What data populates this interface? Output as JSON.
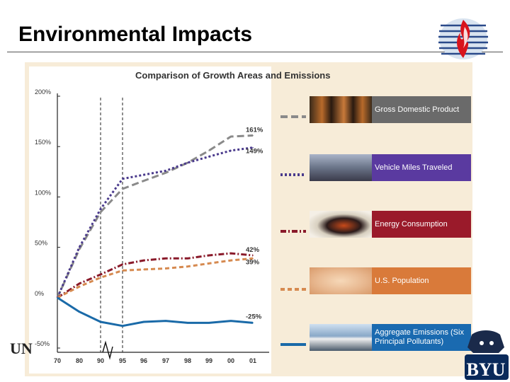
{
  "slide": {
    "title": "Environmental Impacts"
  },
  "footer": {
    "university_text": "UN"
  },
  "colors": {
    "title_rule": "#555555",
    "panel_bg": "#f7ecd8"
  },
  "chart_data": {
    "type": "line",
    "title": "Comparison of Growth Areas and Emissions",
    "categories": [
      "70",
      "80",
      "90",
      "95",
      "96",
      "97",
      "98",
      "99",
      "00",
      "01"
    ],
    "y_tick_labels": [
      "200%",
      "150%",
      "100%",
      "50%",
      "0%",
      "-50%"
    ],
    "y_ticks": [
      200,
      150,
      100,
      50,
      0,
      -50
    ],
    "ylim": [
      -50,
      200
    ],
    "reference_lines": [
      "90",
      "95"
    ],
    "series": [
      {
        "name": "Gross Domestic Product",
        "color": "#8a8a8a",
        "dash": "long",
        "end_label": "161%",
        "tile_color": "#6a6a6a",
        "values": [
          0,
          48,
          85,
          108,
          116,
          124,
          134,
          146,
          160,
          161
        ]
      },
      {
        "name": "Vehicle Miles Traveled",
        "color": "#4a3a8c",
        "dash": "dot",
        "end_label": "149%",
        "tile_color": "#5a3aa0",
        "values": [
          0,
          50,
          88,
          118,
          122,
          126,
          134,
          140,
          146,
          149
        ]
      },
      {
        "name": "Energy Consumption",
        "color": "#8a1a2a",
        "dash": "dashdot",
        "end_label": "42%",
        "tile_color": "#9a1a2a",
        "values": [
          0,
          14,
          23,
          33,
          37,
          39,
          39,
          42,
          44,
          42
        ]
      },
      {
        "name": "U.S. Population",
        "color": "#d68a50",
        "dash": "dash",
        "end_label": "39%",
        "tile_color": "#d97a3a",
        "values": [
          0,
          11,
          20,
          27,
          28,
          29,
          31,
          34,
          37,
          39
        ]
      },
      {
        "name": "Aggregate Emissions (Six Principal Pollutants)",
        "color": "#1a6aa8",
        "dash": "solid",
        "end_label": "-25%",
        "tile_color": "#1a6ab0",
        "values": [
          0,
          -14,
          -24,
          -28,
          -24,
          -23,
          -25,
          -25,
          -23,
          -25
        ]
      }
    ]
  }
}
